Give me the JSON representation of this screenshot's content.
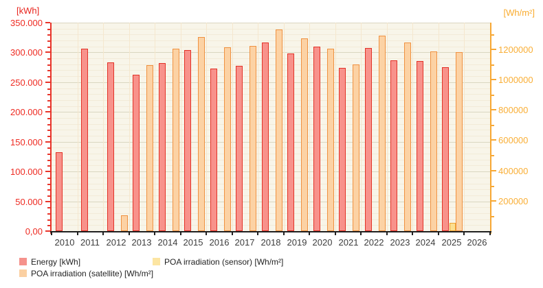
{
  "chart_data": {
    "type": "bar",
    "title": "",
    "categories": [
      "2010",
      "2011",
      "2012",
      "2013",
      "2014",
      "2015",
      "2016",
      "2017",
      "2018",
      "2019",
      "2020",
      "2021",
      "2022",
      "2023",
      "2024",
      "2025",
      "2026"
    ],
    "series": [
      {
        "name": "Energy [kWh]",
        "axis": "left",
        "fill": "#f8928b",
        "border": "#e23227",
        "values": [
          132000,
          306000,
          283000,
          262000,
          282000,
          304000,
          273000,
          278000,
          317000,
          298000,
          310000,
          274000,
          307000,
          287000,
          285000,
          275000,
          null
        ]
      },
      {
        "name": "POA irradiation (sensor) [Wh/m²]",
        "axis": "right",
        "fill": "#fbdf90",
        "border": "#eda12f",
        "values": [
          null,
          null,
          null,
          null,
          null,
          null,
          null,
          null,
          null,
          null,
          null,
          null,
          null,
          null,
          null,
          55000,
          null
        ]
      },
      {
        "name": "POA irradiation (satellite) [Wh/m²]",
        "axis": "right",
        "fill": "#fcd2a4",
        "border": "#ef9140",
        "values": [
          null,
          null,
          105000,
          1095000,
          1205000,
          1280000,
          1210000,
          1220000,
          1330000,
          1270000,
          1205000,
          1100000,
          1290000,
          1245000,
          1185000,
          1180000,
          null
        ]
      }
    ],
    "left_axis": {
      "title": "[kWh]",
      "color": "#e8342a",
      "label_color": "#ee2a21",
      "tick_values": [
        0,
        50000,
        100000,
        150000,
        200000,
        250000,
        300000,
        350000
      ],
      "tick_labels": [
        "0,00",
        "50.000",
        "100.000",
        "150.000",
        "200.000",
        "250.000",
        "300.000",
        "350.000"
      ],
      "minor_step": 10000,
      "ylim": [
        0,
        350000
      ]
    },
    "right_axis": {
      "title": "[Wh/m²]",
      "color": "#f7a733",
      "label_color": "#f9ae35",
      "tick_values": [
        200000,
        400000,
        600000,
        800000,
        1000000,
        1200000
      ],
      "tick_labels": [
        "200000",
        "400000",
        "600000",
        "800000",
        "1000000",
        "1200000"
      ],
      "minor_step": 100000,
      "minor_max": 1300000,
      "ylim": [
        0,
        1375000
      ]
    },
    "x_axis": {
      "label_color": "#3c3c3c",
      "line_color": "#1f1f1f"
    },
    "grid": true,
    "plot_bg": "#f8f5e9",
    "grid_minor_color": "#f2ebd8",
    "grid_major_color": "#d9d6c0",
    "grid_vertical_color": "#f5e7ce",
    "legend_position": "bottom"
  },
  "legend": {
    "items": [
      {
        "id": "energy",
        "label": "Energy [kWh]",
        "color": "#f5928c"
      },
      {
        "id": "satellite",
        "label": "POA irradiation (satellite) [Wh/m²]",
        "color": "#fbd0a2"
      },
      {
        "id": "sensor",
        "label": "POA irradiation (sensor) [Wh/m²]",
        "color": "#fce5a2"
      }
    ]
  }
}
